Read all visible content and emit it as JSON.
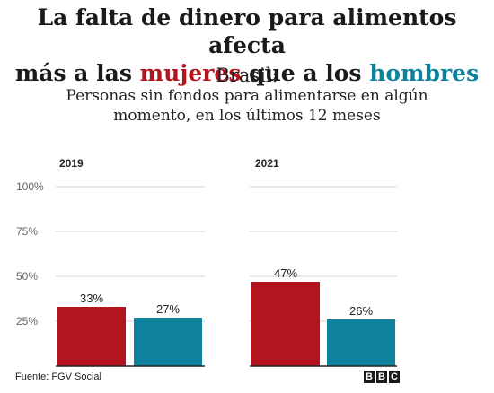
{
  "headline": {
    "line1": "La falta de dinero para alimentos afecta",
    "line2_prefix": "más a las ",
    "women": "mujeres",
    "line2_middle": " que a los ",
    "men": "hombres"
  },
  "subtitle": {
    "country": "Brasil:",
    "description": "Personas sin fondos para alimentarse en algún momento, en los últimos 12 meses"
  },
  "colors": {
    "women": "#b3141e",
    "men": "#0e819d",
    "grid": "#d6d6d6",
    "baseline": "#222222"
  },
  "chart_data": [
    {
      "type": "bar",
      "title": "2019",
      "categories": [
        "mujeres",
        "hombres"
      ],
      "values": [
        33,
        27
      ],
      "data_labels": [
        "33%",
        "27%"
      ],
      "ylim": [
        0,
        100
      ],
      "yticks": [
        25,
        50,
        75,
        100
      ],
      "ytick_labels": [
        "25%",
        "50%",
        "75%",
        "100%"
      ],
      "grid": true
    },
    {
      "type": "bar",
      "title": "2021",
      "categories": [
        "mujeres",
        "hombres"
      ],
      "values": [
        47,
        26
      ],
      "data_labels": [
        "47%",
        "26%"
      ],
      "ylim": [
        0,
        100
      ],
      "grid": true
    }
  ],
  "footer": {
    "source": "Fuente: FGV Social",
    "logo": [
      "B",
      "B",
      "C"
    ]
  }
}
